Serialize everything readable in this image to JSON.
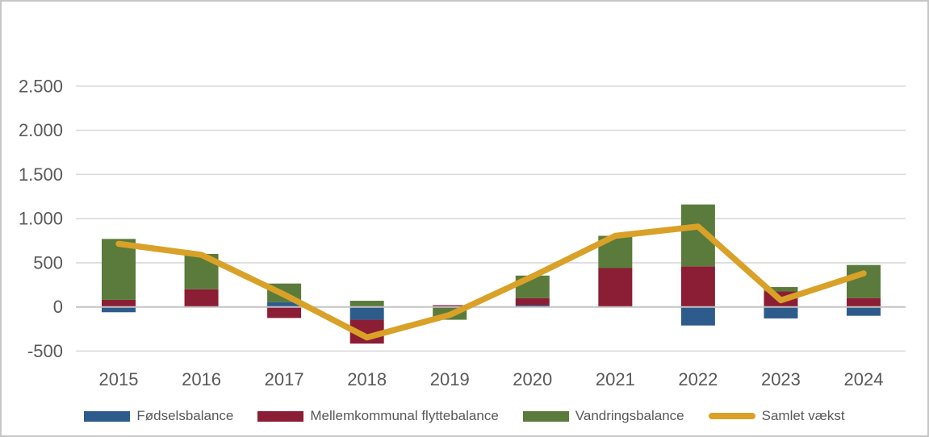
{
  "chart_data": {
    "type": "bar",
    "subtype": "stacked-bar-with-line-overlay",
    "title": "",
    "categories": [
      "2015",
      "2016",
      "2017",
      "2018",
      "2019",
      "2020",
      "2021",
      "2022",
      "2023",
      "2024"
    ],
    "series": [
      {
        "name": "Fødselsbalance",
        "render": "bar",
        "color": "#2d5b8c",
        "values": [
          -60,
          0,
          55,
          -145,
          0,
          20,
          0,
          -210,
          -130,
          -100
        ]
      },
      {
        "name": "Mellemkommunal flyttebalance",
        "render": "bar",
        "color": "#8b1d35",
        "values": [
          80,
          200,
          -125,
          -270,
          20,
          80,
          440,
          460,
          175,
          100
        ]
      },
      {
        "name": "Vandringsbalance",
        "render": "bar",
        "color": "#5a7b3b",
        "values": [
          690,
          400,
          210,
          70,
          -145,
          255,
          365,
          700,
          50,
          375
        ]
      },
      {
        "name": "Samlet vækst",
        "render": "line",
        "color": "#d9a127",
        "values": [
          715,
          590,
          140,
          -345,
          -90,
          345,
          805,
          910,
          75,
          380
        ]
      }
    ],
    "stacked": true,
    "xlabel": "",
    "ylabel": "",
    "ylim": [
      -500,
      2500
    ],
    "y_ticks": [
      {
        "label": "2.500",
        "value": 2500
      },
      {
        "label": "2.000",
        "value": 2000
      },
      {
        "label": "1.500",
        "value": 1500
      },
      {
        "label": "1.000",
        "value": 1000
      },
      {
        "label": "500",
        "value": 500
      },
      {
        "label": "0",
        "value": 0
      },
      {
        "label": "-500",
        "value": -500
      }
    ],
    "grid": true,
    "legend_position": "bottom",
    "colors": {
      "text": "#595959",
      "gridline": "#d9d9d9",
      "zero_axis": "#c3c3c3",
      "background": "#ffffff",
      "frame_border": "#c6c6c6"
    }
  }
}
